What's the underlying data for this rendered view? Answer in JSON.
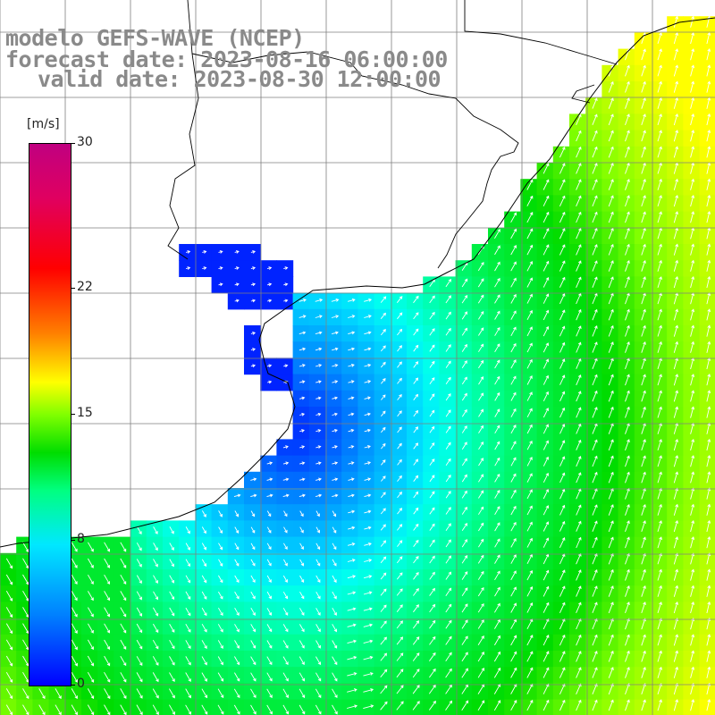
{
  "title": {
    "line1": "modelo GEFS-WAVE (NCEP)",
    "line2": "forecast date: 2023-08-16 06:00:00",
    "line3": "valid date: 2023-08-30 12:00:00"
  },
  "colorbar": {
    "unit": "[m/s]",
    "labels": [
      {
        "text": "30",
        "value": 30
      },
      {
        "text": "22",
        "value": 22
      },
      {
        "text": "15",
        "value": 15
      },
      {
        "text": "8",
        "value": 8
      },
      {
        "text": "0",
        "value": 0
      }
    ],
    "min": 0,
    "max": 30
  },
  "colors": {
    "land": "#ffffff",
    "grid": "#7f7f7f",
    "coast": "#000000",
    "arrow": "#ffffff"
  }
}
